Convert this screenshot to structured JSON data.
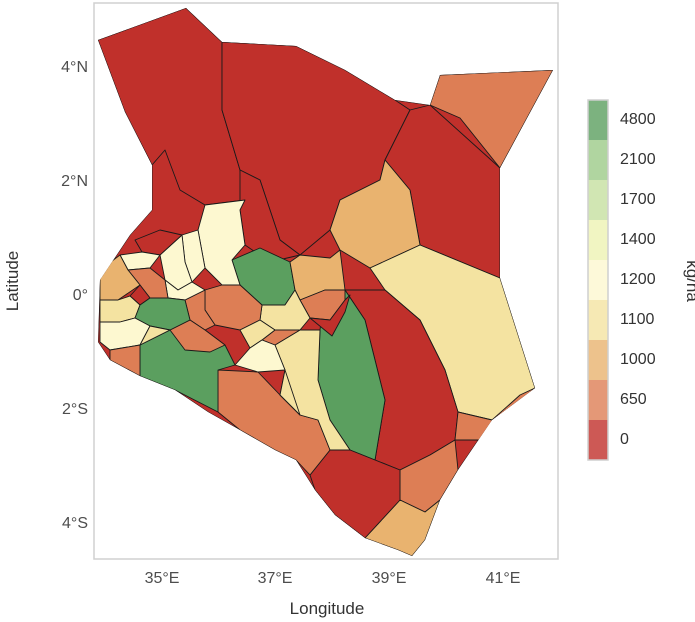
{
  "colors": {
    "c0": "#c0302b",
    "c650": "#dd7e55",
    "c1000": "#e9b36f",
    "c1100": "#f4e3a1",
    "c1200": "#fdf8d0",
    "c1400": "#eef3b3",
    "c1700": "#c5e0a0",
    "c2100": "#9ccb88",
    "c4800": "#5b9f5f"
  },
  "map": {
    "x_axis": {
      "title": "Longitude",
      "ticks": [
        "35°E",
        "37°E",
        "39°E",
        "41°E"
      ]
    },
    "y_axis": {
      "title": "Latitude",
      "ticks": [
        "4°N",
        "2°N",
        "0°",
        "2°S",
        "4°S"
      ]
    },
    "legend": {
      "title": "kg/ha",
      "entries": [
        "4800",
        "2100",
        "1700",
        "1400",
        "1200",
        "1100",
        "1000",
        "650",
        "0"
      ]
    }
  }
}
